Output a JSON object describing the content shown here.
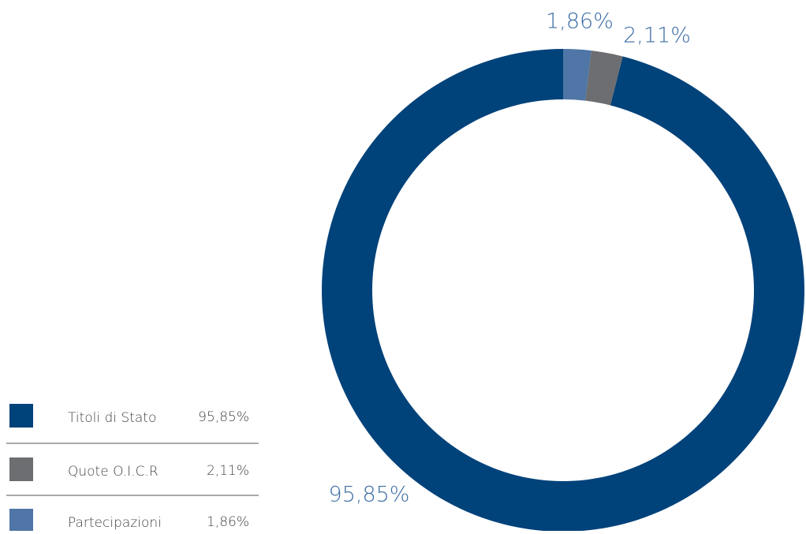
{
  "chart_data": {
    "type": "donut",
    "categories": [
      "Titoli di Stato",
      "Quote O.I.C.R",
      "Partecipazioni"
    ],
    "values": [
      95.85,
      2.11,
      1.86
    ],
    "value_labels": [
      "95,85%",
      "2,11%",
      "1,86%"
    ],
    "colors": [
      "#00427a",
      "#6d6e71",
      "#4f76a6"
    ]
  }
}
